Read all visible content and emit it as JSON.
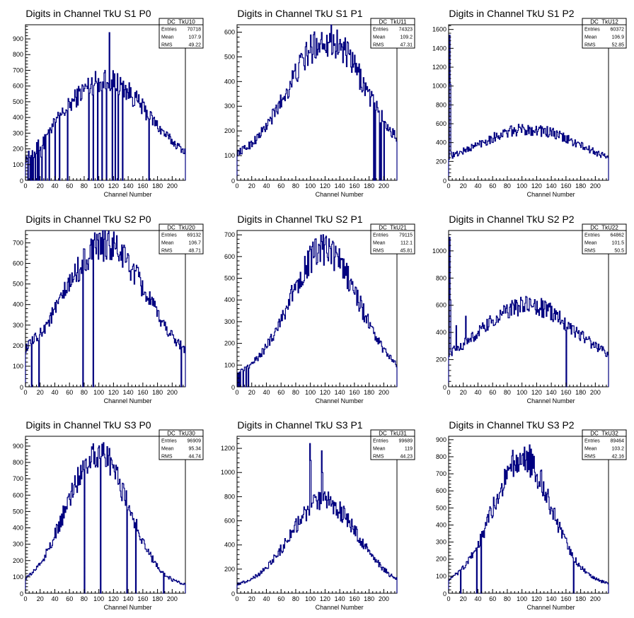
{
  "colors": {
    "histogram": "#000080",
    "axis": "#000000",
    "background": "#ffffff"
  },
  "chart_data": [
    {
      "type": "histogram",
      "title": "Digits in Channel TkU S1 P0",
      "xlabel": "Channel Number",
      "ylabel": "",
      "xlim": [
        0,
        218
      ],
      "ylim": [
        0,
        990
      ],
      "xticks": [
        0,
        20,
        40,
        60,
        80,
        100,
        120,
        140,
        160,
        180,
        200
      ],
      "yticks": [
        100,
        200,
        300,
        400,
        500,
        600,
        700,
        800,
        900
      ],
      "stats": {
        "name": "DC_TkU10",
        "entries": "70718",
        "mean": "107.9",
        "rms": "49.22"
      },
      "profile": {
        "peak": 640,
        "center": 108,
        "width": 58,
        "base": 90,
        "spikes": [
          [
            114,
            940
          ],
          [
            108,
            700
          ]
        ],
        "holes": [
          3,
          6,
          8,
          10,
          13,
          16,
          18,
          22,
          27,
          32,
          40,
          46,
          57,
          86,
          92,
          98,
          104,
          110,
          118,
          122,
          126,
          132,
          168
        ],
        "low": [
          [
            0,
            25,
            0.5
          ]
        ]
      }
    },
    {
      "type": "histogram",
      "title": "Digits in Channel TkU S1 P1",
      "xlabel": "Channel Number",
      "ylabel": "",
      "xlim": [
        0,
        218
      ],
      "ylim": [
        0,
        630
      ],
      "xticks": [
        0,
        20,
        40,
        60,
        80,
        100,
        120,
        140,
        160,
        180,
        200
      ],
      "yticks": [
        100,
        200,
        300,
        400,
        500,
        600
      ],
      "stats": {
        "name": "DC_TkU11",
        "entries": "74323",
        "mean": "109.2",
        "rms": "47.31"
      },
      "profile": {
        "peak": 570,
        "center": 122,
        "width": 52,
        "base": 80,
        "spikes": [],
        "holes": [
          186,
          188,
          194,
          196,
          200
        ],
        "low": []
      }
    },
    {
      "type": "histogram",
      "title": "Digits in Channel TkU S1 P2",
      "xlabel": "Channel Number",
      "ylabel": "",
      "xlim": [
        0,
        218
      ],
      "ylim": [
        0,
        1650
      ],
      "xticks": [
        0,
        20,
        40,
        60,
        80,
        100,
        120,
        140,
        160,
        180,
        200
      ],
      "yticks": [
        200,
        400,
        600,
        800,
        1000,
        1200,
        1400,
        1600
      ],
      "stats": {
        "name": "DC_TkU12",
        "entries": "60372",
        "mean": "106.9",
        "rms": "52.85"
      },
      "profile": {
        "peak": 540,
        "center": 108,
        "width": 70,
        "base": 120,
        "spikes": [
          [
            1,
            1540
          ],
          [
            2,
            1020
          ],
          [
            3,
            300
          ]
        ],
        "holes": [],
        "low": []
      }
    },
    {
      "type": "histogram",
      "title": "Digits in Channel TkU S2 P0",
      "xlabel": "Channel Number",
      "ylabel": "",
      "xlim": [
        0,
        218
      ],
      "ylim": [
        0,
        760
      ],
      "xticks": [
        0,
        20,
        40,
        60,
        80,
        100,
        120,
        140,
        160,
        180,
        200
      ],
      "yticks": [
        100,
        200,
        300,
        400,
        500,
        600,
        700
      ],
      "stats": {
        "name": "DC_TkU20",
        "entries": "69132",
        "mean": "106.7",
        "rms": "48.71"
      },
      "profile": {
        "peak": 690,
        "center": 108,
        "width": 54,
        "base": 110,
        "spikes": [],
        "holes": [
          8,
          18,
          78,
          92,
          212
        ],
        "low": []
      }
    },
    {
      "type": "histogram",
      "title": "Digits in Channel TkU S2 P1",
      "xlabel": "Channel Number",
      "ylabel": "",
      "xlim": [
        0,
        218
      ],
      "ylim": [
        0,
        720
      ],
      "xticks": [
        0,
        20,
        40,
        60,
        80,
        100,
        120,
        140,
        160,
        180,
        200
      ],
      "yticks": [
        100,
        200,
        300,
        400,
        500,
        600,
        700
      ],
      "stats": {
        "name": "DC_TkU21",
        "entries": "79115",
        "mean": "112.1",
        "rms": "45.81"
      },
      "profile": {
        "peak": 630,
        "center": 118,
        "width": 47,
        "base": 40,
        "spikes": [],
        "holes": [
          0,
          2,
          4,
          8,
          12,
          15
        ],
        "low": []
      }
    },
    {
      "type": "histogram",
      "title": "Digits in Channel TkU S2 P2",
      "xlabel": "Channel Number",
      "ylabel": "",
      "xlim": [
        0,
        218
      ],
      "ylim": [
        0,
        1150
      ],
      "xticks": [
        0,
        20,
        40,
        60,
        80,
        100,
        120,
        140,
        160,
        180,
        200
      ],
      "yticks": [
        200,
        400,
        600,
        800,
        1000
      ],
      "stats": {
        "name": "DC_TkU22",
        "entries": "64862",
        "mean": "101.5",
        "rms": "50.5"
      },
      "profile": {
        "peak": 600,
        "center": 108,
        "width": 62,
        "base": 150,
        "spikes": [
          [
            1,
            1100
          ],
          [
            2,
            640
          ],
          [
            10,
            450
          ],
          [
            23,
            520
          ]
        ],
        "holes": [
          160
        ],
        "low": []
      }
    },
    {
      "type": "histogram",
      "title": "Digits in Channel TkU S3 P0",
      "xlabel": "Channel Number",
      "ylabel": "",
      "xlim": [
        0,
        218
      ],
      "ylim": [
        0,
        960
      ],
      "xticks": [
        0,
        20,
        40,
        60,
        80,
        100,
        120,
        140,
        160,
        180,
        200
      ],
      "yticks": [
        100,
        200,
        300,
        400,
        500,
        600,
        700,
        800,
        900
      ],
      "stats": {
        "name": "DC_TkU30",
        "entries": "96909",
        "mean": "95.34",
        "rms": "44.74"
      },
      "profile": {
        "peak": 860,
        "center": 98,
        "width": 42,
        "base": 40,
        "spikes": [],
        "holes": [
          80,
          102,
          138,
          150,
          188
        ],
        "low": []
      }
    },
    {
      "type": "histogram",
      "title": "Digits in Channel TkU S3 P1",
      "xlabel": "Channel Number",
      "ylabel": "",
      "xlim": [
        0,
        218
      ],
      "ylim": [
        0,
        1300
      ],
      "xticks": [
        0,
        20,
        40,
        60,
        80,
        100,
        120,
        140,
        160,
        180,
        200
      ],
      "yticks": [
        200,
        400,
        600,
        800,
        1000,
        1200
      ],
      "stats": {
        "name": "DC_TkU31",
        "entries": "99689",
        "mean": "119",
        "rms": "44.23"
      },
      "profile": {
        "peak": 760,
        "center": 118,
        "width": 46,
        "base": 50,
        "spikes": [
          [
            99,
            1240
          ],
          [
            100,
            1100
          ],
          [
            115,
            1180
          ],
          [
            116,
            1000
          ]
        ],
        "holes": [],
        "low": []
      }
    },
    {
      "type": "histogram",
      "title": "Digits in Channel TkU S3 P2",
      "xlabel": "Channel Number",
      "ylabel": "",
      "xlim": [
        0,
        218
      ],
      "ylim": [
        0,
        920
      ],
      "xticks": [
        0,
        20,
        40,
        60,
        80,
        100,
        120,
        140,
        160,
        180,
        200
      ],
      "yticks": [
        100,
        200,
        300,
        400,
        500,
        600,
        700,
        800,
        900
      ],
      "stats": {
        "name": "DC_TkU32",
        "entries": "89464",
        "mean": "103.2",
        "rms": "42.16"
      },
      "profile": {
        "peak": 790,
        "center": 100,
        "width": 40,
        "base": 50,
        "spikes": [
          [
            110,
            870
          ]
        ],
        "holes": [
          16,
          38,
          44,
          170
        ],
        "low": []
      }
    }
  ]
}
